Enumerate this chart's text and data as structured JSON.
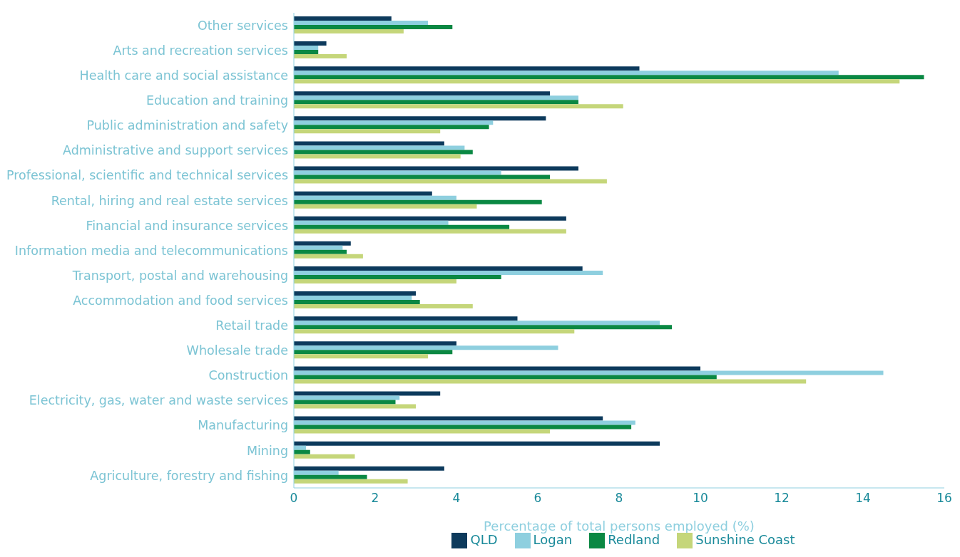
{
  "chart_data": {
    "type": "bar",
    "orientation": "horizontal",
    "xlabel": "Percentage of total persons employed (%)",
    "categories": [
      "Other services",
      "Arts and recreation services",
      "Health care and social assistance",
      "Education and training",
      "Public administration and safety",
      "Administrative and support services",
      "Professional, scientific and technical services",
      "Rental, hiring and real estate services",
      "Financial and insurance services",
      "Information media and telecommunications",
      "Transport, postal and warehousing",
      "Accommodation and food services",
      "Retail trade",
      "Wholesale trade",
      "Construction",
      "Electricity, gas, water and waste services",
      "Manufacturing",
      "Mining",
      "Agriculture, forestry and fishing"
    ],
    "series": [
      {
        "name": "QLD",
        "color": "#0d3a5c",
        "values": [
          2.4,
          0.8,
          8.5,
          6.3,
          6.2,
          3.7,
          7.0,
          3.4,
          6.7,
          1.4,
          7.1,
          3.0,
          5.5,
          4.0,
          10.0,
          3.6,
          7.6,
          9.0,
          3.7
        ]
      },
      {
        "name": "Logan",
        "color": "#8ecfdf",
        "values": [
          3.3,
          0.6,
          13.4,
          7.0,
          4.9,
          4.2,
          5.1,
          4.0,
          3.8,
          1.2,
          7.6,
          2.9,
          9.0,
          6.5,
          14.5,
          2.6,
          8.4,
          0.3,
          1.1
        ]
      },
      {
        "name": "Redland",
        "color": "#0a8843",
        "values": [
          3.9,
          0.6,
          15.5,
          7.0,
          4.8,
          4.4,
          6.3,
          6.1,
          5.3,
          1.3,
          5.1,
          3.1,
          9.3,
          3.9,
          10.4,
          2.5,
          8.3,
          0.4,
          1.8
        ]
      },
      {
        "name": "Sunshine Coast",
        "color": "#c5d67a",
        "values": [
          2.7,
          1.3,
          14.9,
          8.1,
          3.6,
          4.1,
          7.7,
          4.5,
          6.7,
          1.7,
          4.0,
          4.4,
          6.9,
          3.3,
          12.6,
          3.0,
          6.3,
          1.5,
          2.8
        ]
      }
    ],
    "xlim": [
      0,
      16
    ],
    "xticks": [
      0,
      2,
      4,
      6,
      8,
      10,
      12,
      14,
      16
    ],
    "grid": false,
    "legend": "bottom"
  }
}
